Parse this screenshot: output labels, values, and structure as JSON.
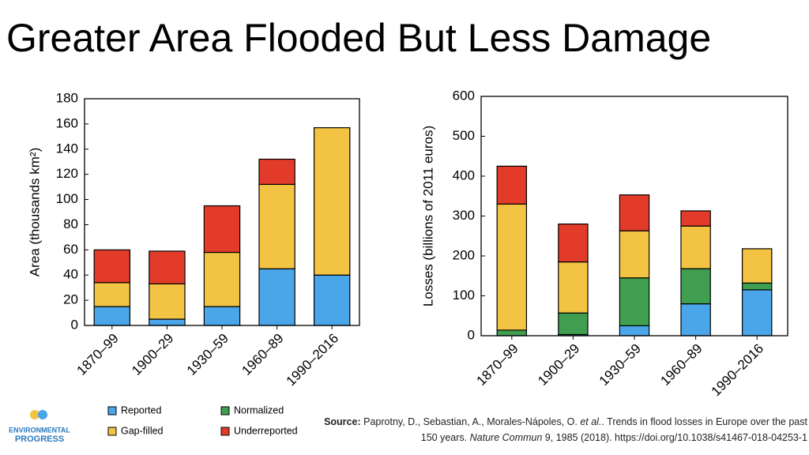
{
  "title": "Greater Area Flooded But Less Damage",
  "chart_data": [
    {
      "type": "bar",
      "stacked": true,
      "y_label": "Area (thousands km²)",
      "categories": [
        "1870–99",
        "1900–29",
        "1930–59",
        "1960–89",
        "1990–2016"
      ],
      "series": [
        {
          "name": "Reported",
          "color": "#4aa6e8",
          "values": [
            15,
            5,
            15,
            45,
            40
          ]
        },
        {
          "name": "Gap-filled",
          "color": "#f3c343",
          "values": [
            19,
            28,
            43,
            67,
            117
          ]
        },
        {
          "name": "Underreported",
          "color": "#e23b2a",
          "values": [
            26,
            26,
            37,
            20,
            0
          ]
        }
      ],
      "ylim": [
        0,
        180
      ],
      "yticks": [
        0,
        20,
        40,
        60,
        80,
        100,
        120,
        140,
        160,
        180
      ]
    },
    {
      "type": "bar",
      "stacked": true,
      "y_label": "Losses (billions of 2011 euros)",
      "categories": [
        "1870–99",
        "1900–29",
        "1930–59",
        "1960–89",
        "1990–2016"
      ],
      "series": [
        {
          "name": "Reported",
          "color": "#4aa6e8",
          "values": [
            0,
            3,
            25,
            80,
            115
          ]
        },
        {
          "name": "Normalized",
          "color": "#3f9e4f",
          "values": [
            14,
            54,
            120,
            88,
            17
          ]
        },
        {
          "name": "Gap-filled",
          "color": "#f3c343",
          "values": [
            316,
            128,
            118,
            107,
            86
          ]
        },
        {
          "name": "Underreported",
          "color": "#e23b2a",
          "values": [
            95,
            95,
            90,
            38,
            0
          ]
        }
      ],
      "ylim": [
        0,
        600
      ],
      "yticks": [
        0,
        100,
        200,
        300,
        400,
        500,
        600
      ]
    }
  ],
  "logo": {
    "line1": "ENVIRONMENTAL",
    "line2": "PROGRESS"
  },
  "source": {
    "label": "Source:",
    "parts": [
      "Paprotny, D., Sebastian, A., Morales-Nápoles, O. ",
      "et al.",
      ". Trends in flood losses in Europe over the past 150 years. ",
      "Nature Commun",
      " 9, 1985 (2018). https://doi.org/10.1038/s41467-018-04253-1"
    ]
  }
}
